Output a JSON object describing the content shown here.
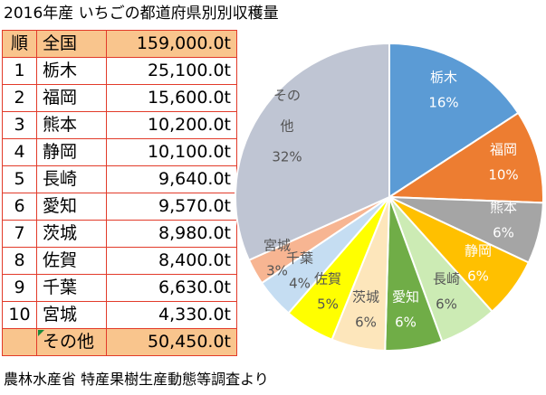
{
  "title": "2016年産 いちごの都道府県別別収穫量",
  "table": {
    "header": {
      "rank": "順",
      "name": "全国",
      "value": "159,000.0t"
    },
    "rows": [
      {
        "rank": "1",
        "name": "栃木",
        "value": "25,100.0t"
      },
      {
        "rank": "2",
        "name": "福岡",
        "value": "15,600.0t"
      },
      {
        "rank": "3",
        "name": "熊本",
        "value": "10,200.0t"
      },
      {
        "rank": "4",
        "name": "静岡",
        "value": "10,100.0t"
      },
      {
        "rank": "5",
        "name": "長崎",
        "value": "9,640.0t"
      },
      {
        "rank": "6",
        "name": "愛知",
        "value": "9,570.0t"
      },
      {
        "rank": "7",
        "name": "茨城",
        "value": "8,980.0t"
      },
      {
        "rank": "8",
        "name": "佐賀",
        "value": "8,400.0t"
      },
      {
        "rank": "9",
        "name": "千葉",
        "value": "6,630.0t"
      },
      {
        "rank": "10",
        "name": "宮城",
        "value": "4,330.0t"
      }
    ],
    "footer": {
      "rank": "",
      "name": "その他",
      "value": "50,450.0t"
    }
  },
  "source": "農林水産省 特産果樹生産動態等調査より",
  "colors": {
    "table_border": "#e23b2a",
    "highlight": "#f9c58d"
  },
  "chart_data": {
    "type": "pie",
    "slices": [
      {
        "label": "栃木",
        "value": 25100,
        "pct": "16%",
        "color": "#5b9bd5",
        "text_color": "#ffffff"
      },
      {
        "label": "福岡",
        "value": 15600,
        "pct": "10%",
        "color": "#ed7d31",
        "text_color": "#ffffff"
      },
      {
        "label": "熊本",
        "value": 10200,
        "pct": "6%",
        "color": "#a5a5a5",
        "text_color": "#ffffff"
      },
      {
        "label": "静岡",
        "value": 10100,
        "pct": "6%",
        "color": "#ffc000",
        "text_color": "#ffffff"
      },
      {
        "label": "長崎",
        "value": 9640,
        "pct": "6%",
        "color": "#ccebb4",
        "text_color": "#555555"
      },
      {
        "label": "愛知",
        "value": 9570,
        "pct": "6%",
        "color": "#70ad47",
        "text_color": "#ffffff"
      },
      {
        "label": "茨城",
        "value": 8980,
        "pct": "6%",
        "color": "#fde6bb",
        "text_color": "#555555"
      },
      {
        "label": "佐賀",
        "value": 8400,
        "pct": "5%",
        "color": "#ffff00",
        "text_color": "#555555"
      },
      {
        "label": "千葉",
        "value": 6630,
        "pct": "4%",
        "color": "#c5ddf2",
        "text_color": "#555555"
      },
      {
        "label": "宮城",
        "value": 4330,
        "pct": "3%",
        "color": "#f7b592",
        "text_color": "#555555"
      },
      {
        "label": "その他",
        "value": 50450,
        "pct": "32%",
        "color": "#bfc5d3",
        "text_color": "#555555"
      }
    ]
  }
}
